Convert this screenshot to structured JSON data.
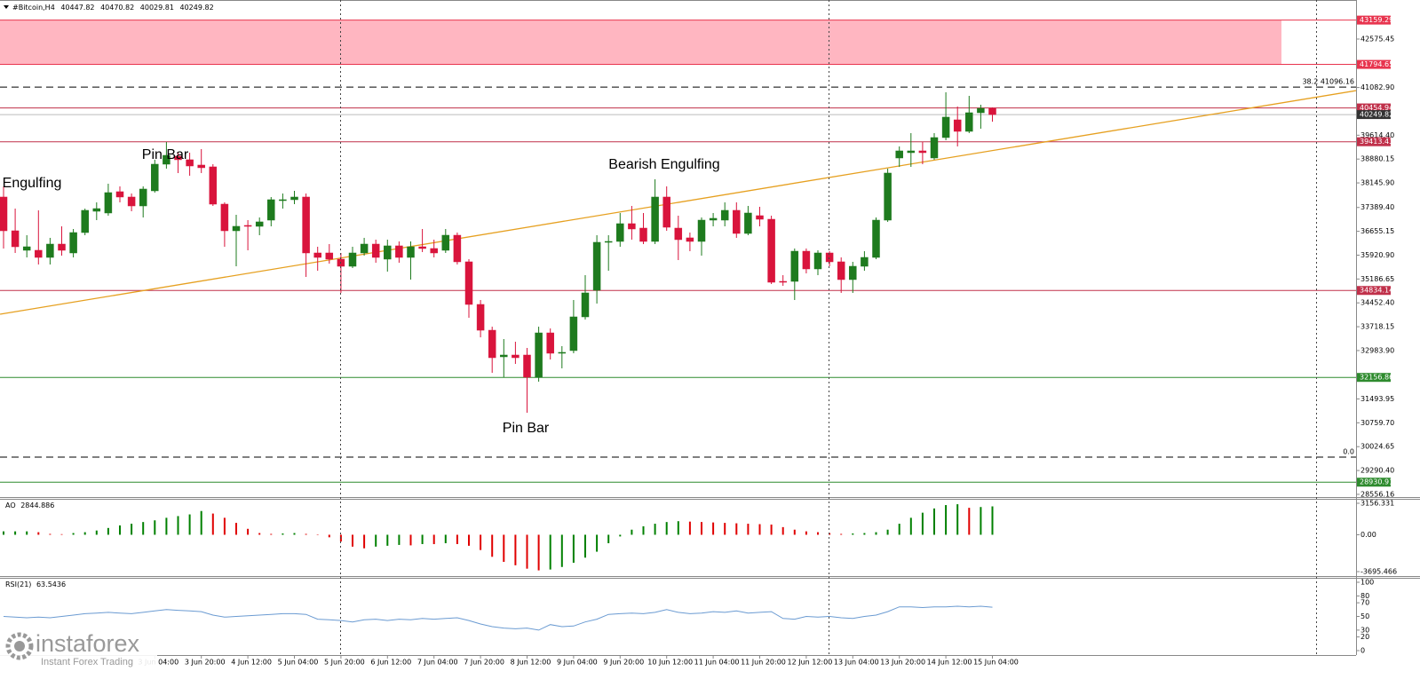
{
  "chart_data": [
    {
      "type": "candlestick",
      "title": "#Bitcoin,H4",
      "categories": [
        null,
        null,
        null,
        null,
        null,
        null,
        null,
        null,
        null,
        null,
        null,
        null,
        null,
        "3 Jun 04:00",
        null,
        null,
        null,
        "3 Jun 20:00",
        null,
        null,
        null,
        "4 Jun 12:00",
        null,
        null,
        null,
        "5 Jun 04:00",
        null,
        null,
        null,
        "5 Jun 20:00",
        null,
        null,
        null,
        "6 Jun 12:00",
        null,
        null,
        null,
        "7 Jun 04:00",
        null,
        null,
        null,
        "7 Jun 20:00",
        null,
        null,
        null,
        "8 Jun 12:00",
        null,
        null,
        null,
        "9 Jun 04:00",
        null,
        null,
        null,
        "9 Jun 20:00",
        null,
        null,
        null,
        "10 Jun 12:00",
        null,
        null,
        null,
        "11 Jun 04:00",
        null,
        null,
        null,
        "11 Jun 20:00",
        null,
        null,
        null,
        "12 Jun 12:00",
        null,
        null,
        null,
        "13 Jun 04:00",
        null,
        null,
        null,
        "13 Jun 20:00",
        null,
        null,
        null,
        "14 Jun 12:00",
        null,
        null,
        null,
        "15 Jun 04:00"
      ],
      "open": [
        37711,
        36672,
        36071,
        36071,
        35852,
        36262,
        35989,
        36617,
        37273,
        37219,
        37875,
        37711,
        37437,
        37902,
        38722,
        38968,
        38859,
        38695,
        38640,
        37492,
        36672,
        36836,
        36809,
        37000,
        37601,
        37629,
        37711,
        35989,
        35989,
        35798,
        35579,
        35989,
        36262,
        35798,
        36208,
        35852,
        36180,
        36126,
        36071,
        36535,
        35716,
        34404,
        33610,
        32791,
        32846,
        32846,
        32162,
        33528,
        32901,
        32983,
        34021,
        34841,
        36317,
        36344,
        36891,
        36754,
        36344,
        37711,
        36754,
        36454,
        36344,
        37000,
        37000,
        37301,
        36590,
        37137,
        37027,
        35114,
        35114,
        36043,
        35497,
        35989,
        35716,
        35169,
        35579,
        35852,
        37000,
        38913,
        39077,
        39132,
        38913,
        39542,
        40088,
        39733,
        40307,
        40447.82
      ],
      "high": [
        38039,
        37355,
        36535,
        37301,
        36454,
        36809,
        36727,
        37355,
        37547,
        38121,
        38039,
        37820,
        38039,
        38859,
        39405,
        39077,
        39077,
        39187,
        38722,
        37547,
        37164,
        37000,
        37082,
        37711,
        37820,
        37902,
        37820,
        36180,
        36262,
        35989,
        36180,
        36454,
        36399,
        36399,
        36344,
        36344,
        36727,
        36399,
        36727,
        36617,
        35798,
        34540,
        33719,
        33338,
        33256,
        33064,
        33719,
        33665,
        33119,
        34540,
        35305,
        36535,
        36535,
        37219,
        37437,
        37219,
        38257,
        38039,
        37137,
        36617,
        37082,
        37219,
        37547,
        37547,
        37437,
        37410,
        37137,
        35305,
        36126,
        36126,
        36071,
        36043,
        35852,
        35716,
        36043,
        37082,
        38585,
        39269,
        39679,
        39405,
        39679,
        40936,
        40498,
        40826,
        40553,
        40470.82
      ],
      "low": [
        36126,
        35989,
        35852,
        35634,
        35634,
        35907,
        35852,
        36535,
        37000,
        37137,
        37547,
        37273,
        37082,
        37847,
        38585,
        38449,
        38367,
        38449,
        37437,
        36180,
        35579,
        36071,
        36535,
        36809,
        37355,
        37492,
        35251,
        35442,
        35661,
        34759,
        35524,
        35907,
        35688,
        35415,
        35688,
        35169,
        36016,
        35852,
        35989,
        35634,
        33994,
        33391,
        32299,
        32162,
        32573,
        31069,
        32026,
        32709,
        32436,
        32901,
        33940,
        34431,
        35442,
        36180,
        36399,
        36262,
        36262,
        36672,
        35770,
        36043,
        35907,
        36809,
        36809,
        36454,
        36535,
        36809,
        35032,
        34977,
        34540,
        35360,
        35305,
        35579,
        34759,
        34759,
        35442,
        35798,
        36946,
        38640,
        38640,
        38722,
        38859,
        39460,
        39269,
        39679,
        39815,
        40029.81
      ],
      "close": [
        36672,
        36180,
        36180,
        35852,
        36262,
        36071,
        36617,
        37301,
        37355,
        37847,
        37711,
        37437,
        37957,
        38722,
        38995,
        38859,
        38667,
        38613,
        37492,
        36672,
        36809,
        36809,
        36946,
        37629,
        37629,
        37711,
        35989,
        35852,
        35798,
        35579,
        35989,
        36262,
        35852,
        36208,
        35852,
        36180,
        36126,
        35989,
        36535,
        35716,
        34404,
        33610,
        32764,
        32846,
        32764,
        32162,
        33528,
        32901,
        32928,
        34021,
        34759,
        36317,
        36344,
        36891,
        36727,
        36344,
        37711,
        36781,
        36399,
        36344,
        37000,
        37055,
        37301,
        36590,
        37219,
        37027,
        35087,
        35087,
        36043,
        35497,
        35989,
        35716,
        35169,
        35579,
        35852,
        37000,
        38449,
        39132,
        39132,
        39077,
        39542,
        40171,
        39733,
        40307,
        40444,
        40249.82
      ],
      "up_color": "#1e7b1e",
      "down_color": "#d9143c",
      "ylim": [
        28473,
        43723
      ],
      "yticks": [
        42575.45,
        {
          "value": 41082.9,
          "label": "41082.90"
        },
        {
          "value": 39614.4,
          "label": "39614.40"
        },
        38880.15,
        {
          "value": 38145.9,
          "label": "38145.90"
        },
        {
          "value": 37389.4,
          "label": "37389.40"
        },
        36655.15,
        {
          "value": 35920.9,
          "label": "35920.90"
        },
        35186.65,
        {
          "value": 34452.4,
          "label": "34452.40"
        },
        33718.15,
        {
          "value": 32983.9,
          "label": "32983.90"
        },
        31493.95,
        {
          "value": 30759.7,
          "label": "30759.70"
        },
        30024.65,
        {
          "value": 29290.4,
          "label": "29290.40"
        },
        28556.16
      ],
      "levels": [
        {
          "value": 43159.29,
          "color": "#e8344e"
        },
        {
          "value": 41794.65,
          "color": "#e8344e"
        },
        {
          "value": 40454.94,
          "color": "#c0304a"
        },
        {
          "value": 39413.43,
          "color": "#c0304a"
        },
        {
          "value": 34834.14,
          "color": "#c0304a"
        },
        {
          "value": 32156.86,
          "color": "#2e8b2e"
        },
        {
          "value": 28930.91,
          "color": "#2e8b2e"
        }
      ],
      "zone_color": "#ffb6c1",
      "fibonacci": [
        {
          "label": "38.2 41096.16",
          "price": 41096.16
        },
        {
          "label": "0.0",
          "price": 29703
        }
      ],
      "trendline": {
        "x": [
          -0.3,
          116.3
        ],
        "y": [
          34103,
          40990
        ],
        "color": "#e6a020"
      },
      "annotations": [
        "Engulfing",
        "Pin Bar",
        "Bearish Engulfing",
        "Pin Bar"
      ]
    },
    {
      "type": "histogram",
      "title": "AO",
      "values": [
        340,
        340,
        340,
        255,
        85,
        60,
        170,
        255,
        425,
        680,
        935,
        1105,
        1275,
        1445,
        1700,
        1870,
        2040,
        2380,
        2125,
        1700,
        1190,
        595,
        170,
        85,
        128,
        170,
        85,
        43,
        -255,
        -680,
        -1190,
        -1360,
        -1190,
        -1105,
        -1020,
        -1063,
        -935,
        -940,
        -850,
        -935,
        -1105,
        -1530,
        -2210,
        -2720,
        -3060,
        -3400,
        -3570,
        -3485,
        -3230,
        -2805,
        -2295,
        -1700,
        -850,
        -170,
        510,
        850,
        1105,
        1275,
        1360,
        1318,
        1275,
        1233,
        1190,
        1148,
        1105,
        1063,
        1020,
        765,
        510,
        340,
        255,
        170,
        85,
        128,
        170,
        255,
        510,
        1105,
        1700,
        2210,
        2635,
        2975,
        3060,
        2700,
        2780,
        2844.886
      ],
      "up_color": "#008000",
      "down_color": "#e00000",
      "ylim": [
        -4051,
        3601
      ],
      "yticks": [
        3156.331,
        {
          "value": 0,
          "label": "0.00"
        },
        -3695.466
      ]
    },
    {
      "type": "line",
      "title": "RSI(21)",
      "values": [
        50,
        49,
        48,
        49,
        48,
        50,
        52,
        54,
        55,
        56,
        55,
        54,
        56,
        58,
        60,
        59,
        58,
        57,
        52,
        49,
        50,
        51,
        52,
        53,
        54,
        54,
        53,
        46,
        45,
        44,
        42,
        45,
        46,
        44,
        46,
        45,
        47,
        46,
        47,
        48,
        44,
        39,
        35,
        33,
        32,
        33,
        30,
        38,
        35,
        36,
        42,
        46,
        53,
        54,
        55,
        54,
        56,
        60,
        56,
        54,
        55,
        57,
        56,
        58,
        55,
        56,
        57,
        47,
        46,
        50,
        49,
        50,
        48,
        47,
        50,
        52,
        57,
        64,
        64,
        63,
        64,
        64,
        65,
        64,
        65,
        63.5436
      ],
      "color": "#6b9bd2",
      "ylim": [
        -6.5,
        106.5
      ],
      "yticks": [
        100,
        80,
        70,
        50,
        30,
        20,
        0
      ]
    }
  ],
  "watermark": {
    "name": "instaforex",
    "tagline": "Instant Forex Trading"
  }
}
